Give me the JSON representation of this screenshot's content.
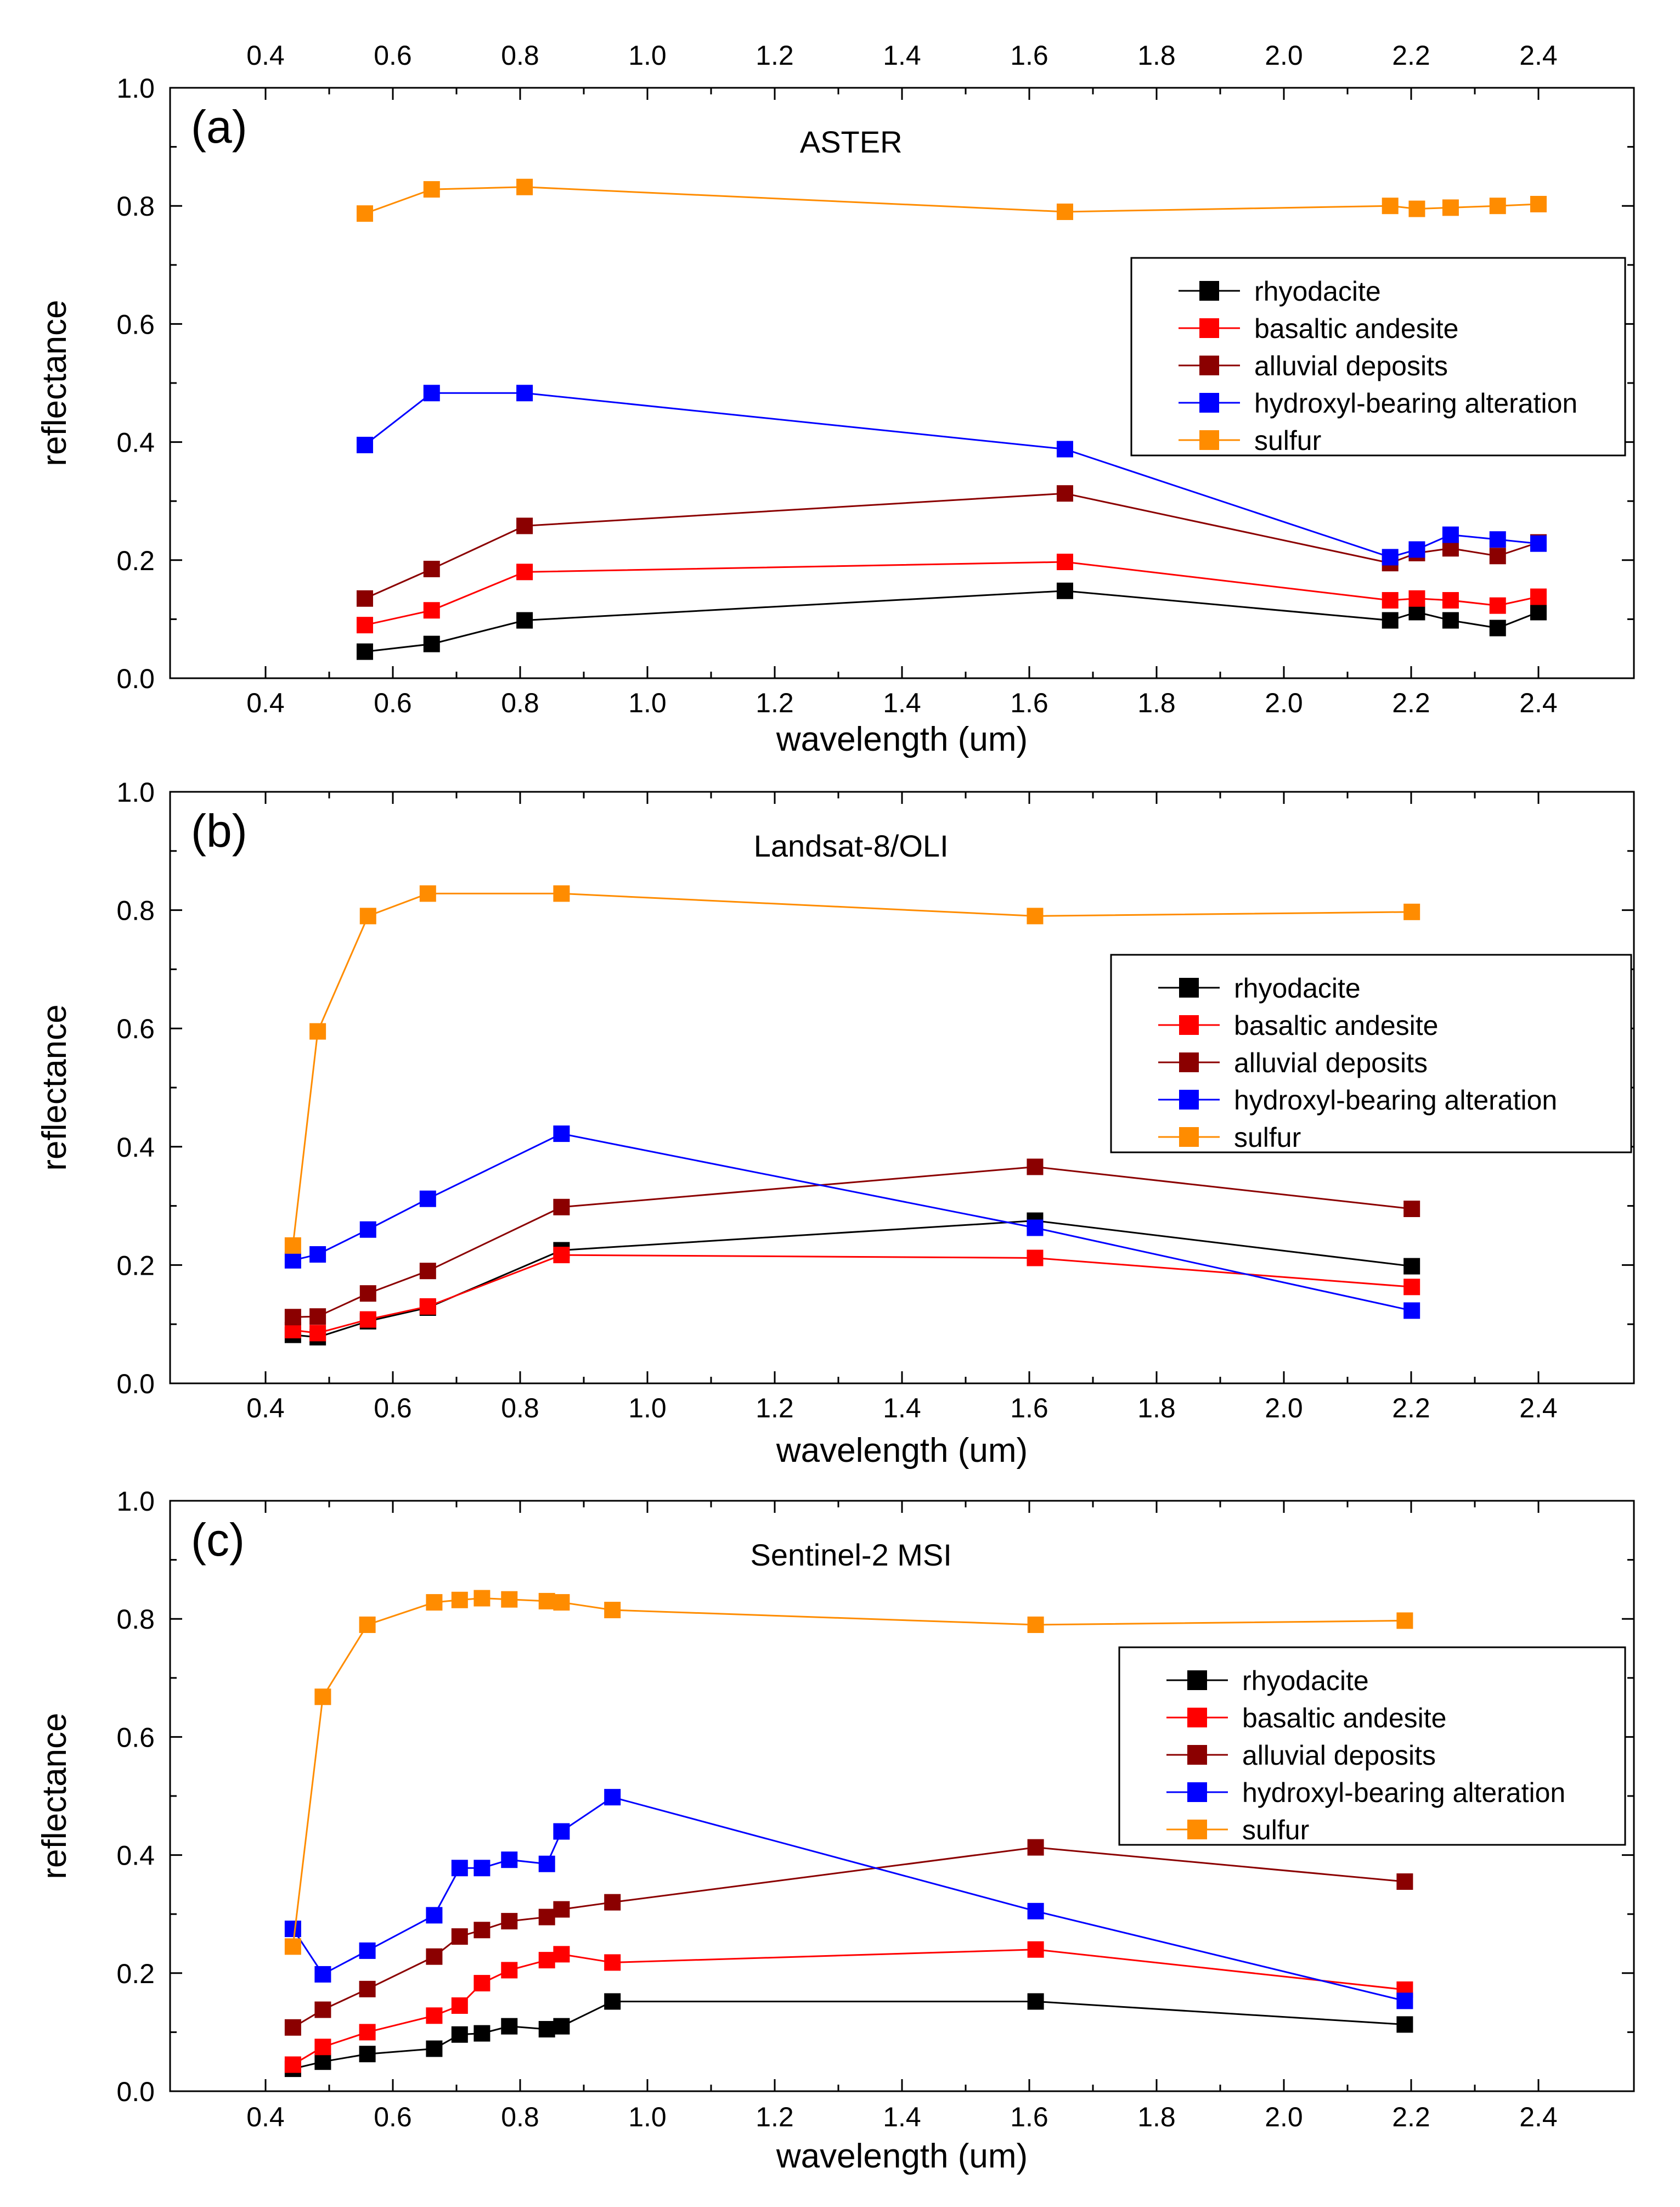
{
  "figure": {
    "x_ticks": [
      "0.4",
      "0.6",
      "0.8",
      "1.0",
      "1.2",
      "1.4",
      "1.6",
      "1.8",
      "2.0",
      "2.2",
      "2.4"
    ],
    "y_ticks": [
      "0.0",
      "0.2",
      "0.4",
      "0.6",
      "0.8",
      "1.0"
    ]
  },
  "colors": {
    "rhyodacite": "#000000",
    "basaltic andesite": "#ff0000",
    "alluvial deposits": "#8b0000",
    "hydroxyl-bearing alteration": "#0000ff",
    "sulfur": "#ff8c00"
  },
  "chart_data": [
    {
      "type": "line",
      "panel_label": "(a)",
      "title": "ASTER",
      "xlabel": "wavelength (um)",
      "ylabel": "reflectance",
      "xlim": [
        0.25,
        2.55
      ],
      "ylim": [
        0.0,
        1.0
      ],
      "top_axis_labels": true,
      "legend": {
        "placement": "right",
        "entries": [
          "rhyodacite",
          "basaltic andesite",
          "alluvial deposits",
          "hydroxyl-bearing alteration",
          "sulfur"
        ]
      },
      "x": [
        0.556,
        0.661,
        0.807,
        1.656,
        2.167,
        2.209,
        2.262,
        2.336,
        2.4
      ],
      "series": [
        {
          "name": "rhyodacite",
          "values": [
            0.045,
            0.058,
            0.098,
            0.148,
            0.098,
            0.112,
            0.098,
            0.085,
            0.112
          ]
        },
        {
          "name": "basaltic andesite",
          "values": [
            0.09,
            0.115,
            0.18,
            0.197,
            0.132,
            0.135,
            0.132,
            0.123,
            0.138
          ]
        },
        {
          "name": "alluvial deposits",
          "values": [
            0.135,
            0.185,
            0.258,
            0.313,
            0.195,
            0.212,
            0.22,
            0.207,
            0.23
          ]
        },
        {
          "name": "hydroxyl-bearing alteration",
          "values": [
            0.395,
            0.483,
            0.483,
            0.388,
            0.205,
            0.218,
            0.243,
            0.235,
            0.228
          ]
        },
        {
          "name": "sulfur",
          "values": [
            0.787,
            0.828,
            0.832,
            0.79,
            0.8,
            0.795,
            0.797,
            0.8,
            0.803
          ]
        }
      ]
    },
    {
      "type": "line",
      "panel_label": "(b)",
      "title": "Landsat-8/OLI",
      "xlabel": "wavelength (um)",
      "ylabel": "reflectance",
      "xlim": [
        0.25,
        2.55
      ],
      "ylim": [
        0.0,
        1.0
      ],
      "top_axis_labels": false,
      "legend": {
        "placement": "right",
        "entries": [
          "rhyodacite",
          "basaltic andesite",
          "alluvial deposits",
          "hydroxyl-bearing  alteration",
          "sulfur"
        ]
      },
      "x": [
        0.443,
        0.482,
        0.561,
        0.655,
        0.865,
        1.609,
        2.201
      ],
      "series": [
        {
          "name": "rhyodacite",
          "values": [
            0.082,
            0.078,
            0.105,
            0.128,
            0.225,
            0.275,
            0.198
          ]
        },
        {
          "name": "basaltic andesite",
          "values": [
            0.09,
            0.085,
            0.108,
            0.13,
            0.217,
            0.212,
            0.163
          ]
        },
        {
          "name": "alluvial deposits",
          "values": [
            0.112,
            0.113,
            0.152,
            0.19,
            0.298,
            0.366,
            0.295
          ]
        },
        {
          "name": "hydroxyl-bearing  alteration",
          "values": [
            0.208,
            0.218,
            0.26,
            0.312,
            0.422,
            0.263,
            0.123
          ]
        },
        {
          "name": "sulfur",
          "values": [
            0.233,
            0.595,
            0.79,
            0.828,
            0.828,
            0.79,
            0.797
          ]
        }
      ]
    },
    {
      "type": "line",
      "panel_label": "(c)",
      "title": "Sentinel-2 MSI",
      "xlabel": "wavelength (um)",
      "ylabel": "reflectance",
      "xlim": [
        0.25,
        2.55
      ],
      "ylim": [
        0.0,
        1.0
      ],
      "top_axis_labels": false,
      "legend": {
        "placement": "right",
        "entries": [
          "rhyodacite",
          "basaltic andesite",
          "alluvial deposits",
          "hydroxyl-bearing alteration",
          "sulfur"
        ]
      },
      "x": [
        0.443,
        0.49,
        0.56,
        0.665,
        0.705,
        0.74,
        0.783,
        0.842,
        0.865,
        0.945,
        1.61,
        2.19
      ],
      "series": [
        {
          "name": "rhyodacite",
          "values": [
            0.038,
            0.05,
            0.063,
            0.072,
            0.096,
            0.098,
            0.11,
            0.105,
            0.11,
            0.152,
            0.152,
            0.113
          ]
        },
        {
          "name": "basaltic andesite",
          "values": [
            0.045,
            0.075,
            0.1,
            0.128,
            0.145,
            0.183,
            0.205,
            0.222,
            0.232,
            0.218,
            0.24,
            0.172
          ]
        },
        {
          "name": "alluvial deposits",
          "values": [
            0.108,
            0.138,
            0.173,
            0.228,
            0.262,
            0.273,
            0.288,
            0.295,
            0.308,
            0.32,
            0.413,
            0.355
          ]
        },
        {
          "name": "hydroxyl-bearing alteration",
          "values": [
            0.275,
            0.198,
            0.238,
            0.298,
            0.378,
            0.378,
            0.392,
            0.385,
            0.44,
            0.498,
            0.305,
            0.153
          ]
        },
        {
          "name": "sulfur",
          "values": [
            0.245,
            0.668,
            0.79,
            0.828,
            0.832,
            0.835,
            0.833,
            0.83,
            0.828,
            0.815,
            0.79,
            0.797
          ]
        }
      ]
    }
  ]
}
